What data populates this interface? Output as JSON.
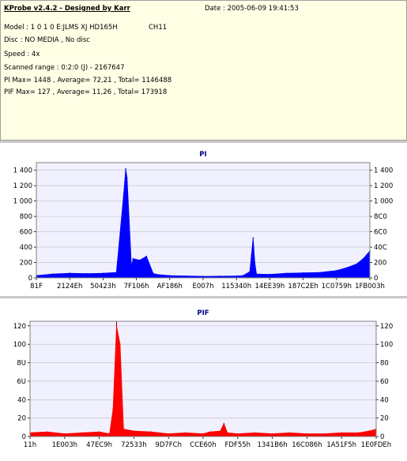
{
  "info": {
    "title": "KProbe v2.4.2 - Designed by Karr",
    "date": "Date : 2005-06-09 19:41:53",
    "model": "Model : 1 0 1 0 E:JLMS   XJ HD165H",
    "channel": "CH11",
    "disc": "Disc : NO MEDIA , No disc",
    "speed": "Speed : 4x",
    "range": "Scanned range : 0:2:0 (J) - 2167647",
    "pi_stats": "PI Max= 1448 , Average= 72,21 , Total= 1146488",
    "pif_stats": "PIF Max= 127 , Average= 11,26 , Total= 173918"
  },
  "colors": {
    "pi_series": "#0000ff",
    "pif_series": "#ff0000",
    "plot_bg": "#f0f0ff",
    "grid": "#c0c0c0",
    "marker": "#800000"
  },
  "chart_data": [
    {
      "type": "area",
      "title": "PI",
      "xlabel": "",
      "ylabel": "",
      "ylim": [
        0,
        1500
      ],
      "yticks": [
        0,
        200,
        400,
        600,
        800,
        1000,
        1200,
        1400
      ],
      "ytick_labels": [
        "0",
        "200",
        "400",
        "600",
        "800",
        "1 000",
        "1 200",
        "1 400"
      ],
      "right_ytick_labels": [
        "0",
        "200",
        "40C",
        "6C0",
        "8C0",
        "1 000",
        "1 200",
        "1 400"
      ],
      "xtick_labels": [
        "81F",
        "2124Eh",
        "50423h",
        "7F106h",
        "AF186h",
        "E007h",
        "115340h",
        "14EE39h",
        "187C2Eh",
        "1C0759h",
        "1FB003h"
      ],
      "x": [
        0.0,
        0.05,
        0.1,
        0.15,
        0.2,
        0.24,
        0.262,
        0.268,
        0.272,
        0.285,
        0.29,
        0.31,
        0.33,
        0.35,
        0.36,
        0.4,
        0.45,
        0.5,
        0.55,
        0.6,
        0.62,
        0.64,
        0.645,
        0.65,
        0.655,
        0.66,
        0.7,
        0.75,
        0.8,
        0.85,
        0.9,
        0.93,
        0.96,
        0.98,
        1.0
      ],
      "series": [
        {
          "values": [
            30,
            50,
            60,
            55,
            60,
            70,
            1100,
            1420,
            1300,
            150,
            250,
            230,
            280,
            60,
            45,
            30,
            25,
            20,
            22,
            25,
            30,
            80,
            300,
            520,
            200,
            50,
            45,
            60,
            65,
            70,
            95,
            130,
            180,
            250,
            350
          ]
        }
      ]
    },
    {
      "type": "area",
      "title": "PIF",
      "xlabel": "",
      "ylabel": "",
      "ylim": [
        0,
        125
      ],
      "yticks": [
        0,
        20,
        40,
        60,
        80,
        100,
        120
      ],
      "ytick_labels": [
        "0",
        "20",
        "40",
        "6U",
        "8U",
        "100",
        "120"
      ],
      "right_ytick_labels": [
        "0",
        "20",
        "40",
        "60",
        "80",
        "100",
        "120"
      ],
      "xtick_labels": [
        "11h",
        "1E003h",
        "47EC9h",
        "72533h",
        "9D7FCh",
        "CCE60h",
        "FDF55h",
        "1341B6h",
        "16C086h",
        "1A51F5h",
        "1E0FDEh"
      ],
      "marker_x": 0.25,
      "x": [
        0.0,
        0.05,
        0.1,
        0.15,
        0.2,
        0.23,
        0.24,
        0.25,
        0.26,
        0.27,
        0.3,
        0.35,
        0.4,
        0.45,
        0.5,
        0.52,
        0.55,
        0.56,
        0.57,
        0.6,
        0.65,
        0.7,
        0.75,
        0.8,
        0.85,
        0.9,
        0.95,
        0.98,
        1.0
      ],
      "series": [
        {
          "values": [
            4,
            5,
            3,
            4,
            5,
            3,
            30,
            120,
            100,
            8,
            6,
            5,
            3,
            4,
            3,
            5,
            6,
            14,
            4,
            3,
            4,
            3,
            4,
            3,
            3,
            4,
            4,
            6,
            8
          ]
        }
      ]
    }
  ]
}
